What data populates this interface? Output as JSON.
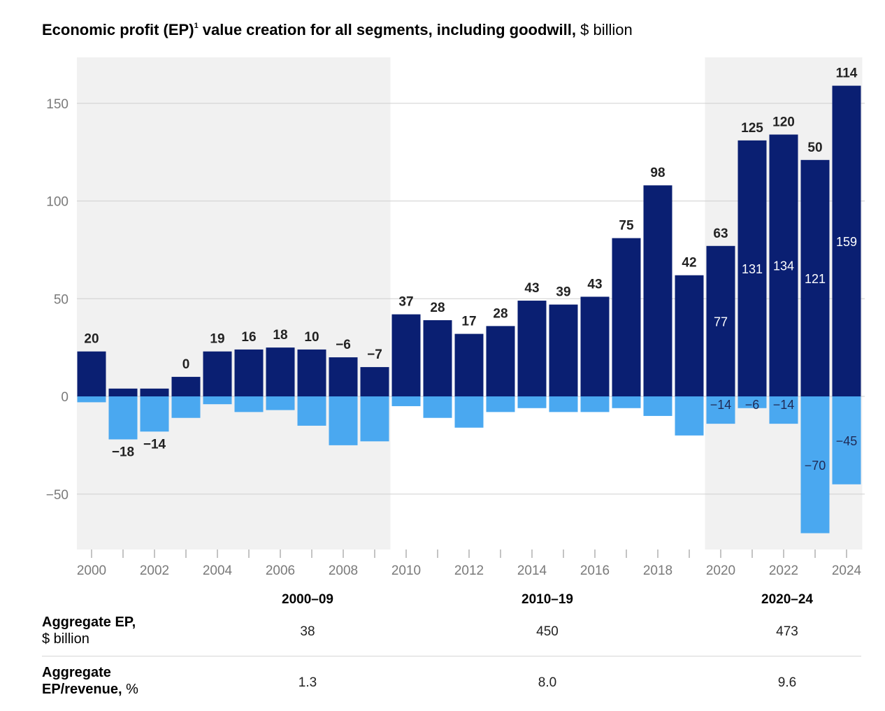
{
  "title": {
    "main": "Economic profit (EP)",
    "footnote": "1",
    "rest": " value creation for all segments, including goodwill,",
    "unit": " $ billion"
  },
  "colors": {
    "positive": "#0a1f72",
    "negative": "#4aa8f0",
    "shade": "#f1f1f1",
    "grid": "#d0d0d0",
    "axis_text": "#7a7a7a"
  },
  "chart_data": {
    "type": "bar",
    "stacked": true,
    "ylim": [
      -78,
      172
    ],
    "yticks": [
      150,
      100,
      50,
      0,
      -50
    ],
    "ytick_labels": [
      "150",
      "100",
      "50",
      "0",
      "−50"
    ],
    "x": [
      "2000",
      "2001",
      "2002",
      "2003",
      "2004",
      "2005",
      "2006",
      "2007",
      "2008",
      "2009",
      "2010",
      "2011",
      "2012",
      "2013",
      "2014",
      "2015",
      "2016",
      "2017",
      "2018",
      "2019",
      "2020",
      "2021",
      "2022",
      "2023",
      "2024"
    ],
    "xtick_labels": [
      "2000",
      "2002",
      "2004",
      "2006",
      "2008",
      "2010",
      "2012",
      "2014",
      "2016",
      "2018",
      "2020",
      "2022",
      "2024"
    ],
    "series": [
      {
        "values": [
          23,
          4,
          4,
          10,
          23,
          24,
          25,
          24,
          20,
          15,
          42,
          39,
          32,
          36,
          49,
          47,
          51,
          81,
          108,
          62,
          77,
          131,
          134,
          121,
          159
        ]
      },
      {
        "values": [
          -3,
          -22,
          -18,
          -11,
          -4,
          -8,
          -7,
          -15,
          -25,
          -23,
          -5,
          -11,
          -16,
          -8,
          -6,
          -8,
          -8,
          -6,
          -10,
          -20,
          -14,
          -6,
          -14,
          -70,
          -45
        ]
      }
    ],
    "net_labels": [
      "20",
      "−18",
      "−14",
      "0",
      "19",
      "16",
      "18",
      "10",
      "−6",
      "−7",
      "37",
      "28",
      "17",
      "28",
      "43",
      "39",
      "43",
      "75",
      "98",
      "42",
      "63",
      "125",
      "120",
      "50",
      "114"
    ],
    "inner_positive_labels": [
      "",
      "",
      "",
      "",
      "",
      "",
      "",
      "",
      "",
      "",
      "",
      "",
      "",
      "",
      "",
      "",
      "",
      "",
      "",
      "",
      "77",
      "131",
      "134",
      "121",
      "159"
    ],
    "inner_negative_labels": [
      "",
      "",
      "",
      "",
      "",
      "",
      "",
      "",
      "",
      "",
      "",
      "",
      "",
      "",
      "",
      "",
      "",
      "",
      "",
      "",
      "−14",
      "−6",
      "−14",
      "−70",
      "−45"
    ],
    "shaded_periods": [
      [
        "2000",
        "2009"
      ],
      [
        "2020",
        "2024"
      ]
    ]
  },
  "table": {
    "periods": [
      "2000–09",
      "2010–19",
      "2020–24"
    ],
    "rows": [
      {
        "label_bold": "Aggregate EP,",
        "label_rest": "$ billion",
        "values": [
          "38",
          "450",
          "473"
        ]
      },
      {
        "label_bold": "Aggregate",
        "label_bold2": "EP/revenue,",
        "label_rest": " %",
        "values": [
          "1.3",
          "8.0",
          "9.6"
        ]
      }
    ]
  }
}
